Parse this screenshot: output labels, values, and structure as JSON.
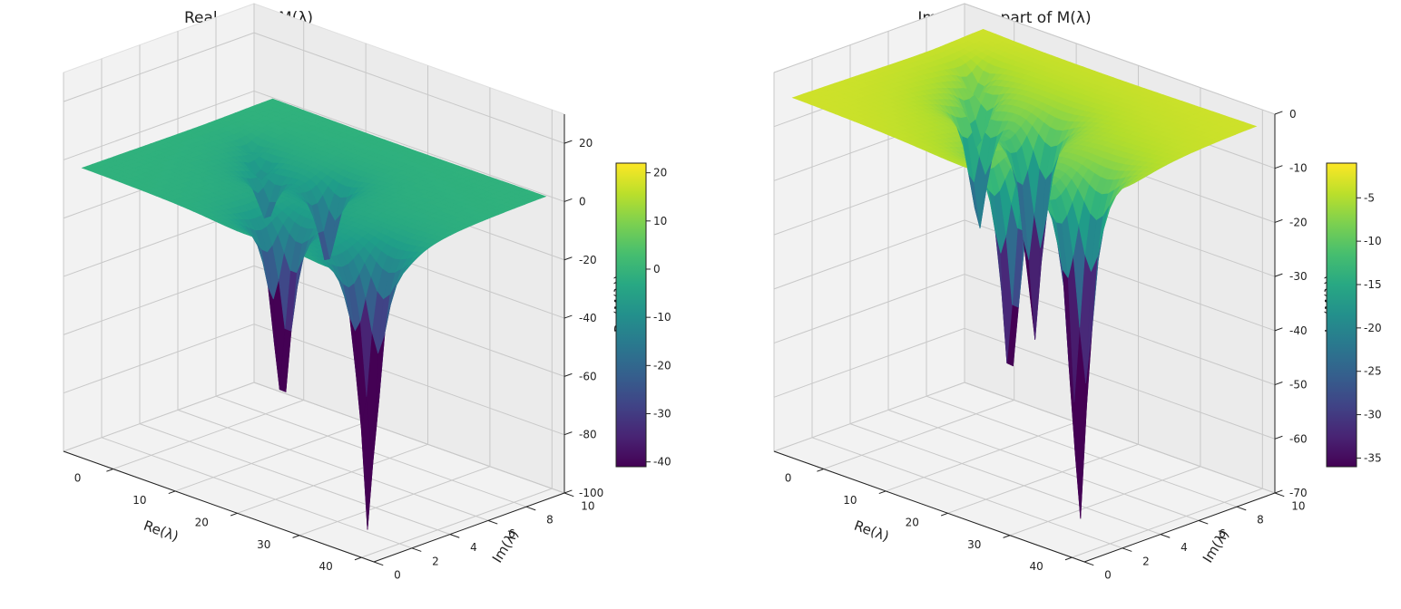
{
  "chart_data": [
    {
      "type": "surface3d",
      "title": "Real part of M(λ)",
      "xlabel": "Re(λ)",
      "ylabel": "Im(λ)",
      "zlabel": "Re(M(λ))",
      "xlim": [
        -8,
        42
      ],
      "ylim": [
        0,
        10
      ],
      "zlim": [
        -100,
        30
      ],
      "xticks": [
        0,
        10,
        20,
        30,
        40
      ],
      "yticks": [
        0,
        2,
        4,
        6,
        8,
        10
      ],
      "zticks": [
        -100,
        -80,
        -60,
        -40,
        -20,
        0,
        20
      ],
      "colormap": "viridis",
      "colorbar": {
        "label": "Re(M(λ))",
        "range": [
          -41,
          22
        ],
        "ticks": [
          -40,
          -30,
          -20,
          -10,
          0,
          10,
          20
        ]
      },
      "plateau_value": 0,
      "spikes": [
        {
          "x": 2.2,
          "y": 6.6,
          "depth": -4
        },
        {
          "x": 5.6,
          "y": 5.9,
          "depth": -8
        },
        {
          "x": 9.4,
          "y": 5.0,
          "depth": -18
        },
        {
          "x": 17.0,
          "y": 5.7,
          "depth": -30
        },
        {
          "x": 20.5,
          "y": 2.2,
          "depth": -70
        },
        {
          "x": 35.0,
          "y": 2.0,
          "depth": -100
        }
      ],
      "grid": true
    },
    {
      "type": "surface3d",
      "title": "Imaginary part of M(λ)",
      "xlabel": "Re(λ)",
      "ylabel": "Im(λ)",
      "zlabel": "Im(M(λ))",
      "xlim": [
        -8,
        42
      ],
      "ylim": [
        0,
        10
      ],
      "zlim": [
        -70,
        0
      ],
      "xticks": [
        0,
        10,
        20,
        30,
        40
      ],
      "yticks": [
        0,
        2,
        4,
        6,
        8,
        10
      ],
      "zticks": [
        -70,
        -60,
        -50,
        -40,
        -30,
        -20,
        -10,
        0
      ],
      "colormap": "viridis",
      "colorbar": {
        "label": "Im(M(λ))",
        "range": [
          -36,
          -1
        ],
        "ticks": [
          -35,
          -30,
          -25,
          -20,
          -15,
          -10,
          -5
        ]
      },
      "plateau_value": -3,
      "spikes": [
        {
          "x": 1.5,
          "y": 7.5,
          "depth": -6
        },
        {
          "x": 5.0,
          "y": 6.5,
          "depth": -12
        },
        {
          "x": 9.0,
          "y": 5.2,
          "depth": -24
        },
        {
          "x": 17.0,
          "y": 5.5,
          "depth": -42
        },
        {
          "x": 21.5,
          "y": 2.8,
          "depth": -46
        },
        {
          "x": 32.0,
          "y": 3.0,
          "depth": -70
        }
      ],
      "grid": true
    }
  ]
}
